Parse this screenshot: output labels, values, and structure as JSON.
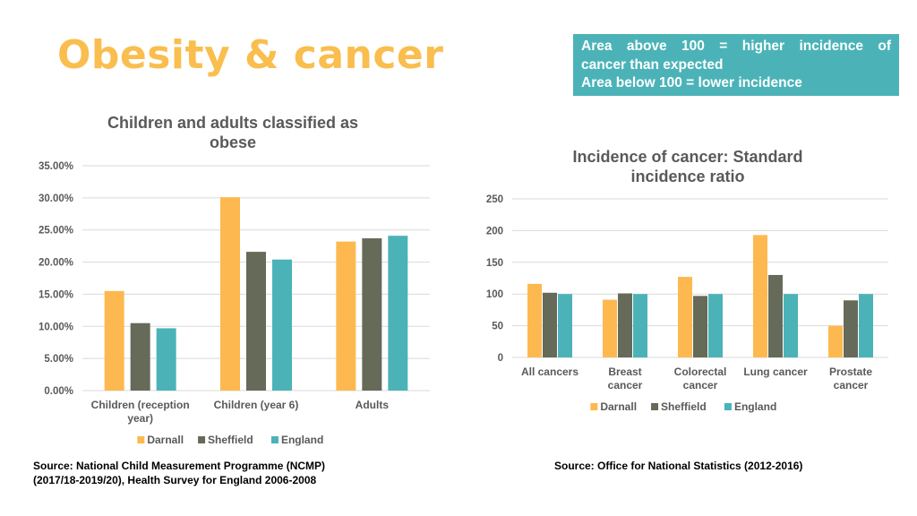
{
  "header": {
    "title": "Obesity & cancer",
    "title_color": "#F9BE4E",
    "note_lines": [
      "Area above 100 = higher incidence of",
      "cancer than expected",
      "Area below 100 = lower incidence"
    ],
    "note_bg": "#4BB3B8"
  },
  "colors": {
    "Darnall": "#FDB94F",
    "Sheffield": "#666A59",
    "England": "#4BB3B8"
  },
  "chart_data": [
    {
      "type": "bar",
      "title_lines": [
        "Children and adults classified as",
        "obese"
      ],
      "categories": [
        [
          "Children (reception",
          "year)"
        ],
        [
          "Children (year 6)"
        ],
        [
          "Adults"
        ]
      ],
      "series": [
        {
          "name": "Darnall",
          "values": [
            15.5,
            30.1,
            23.2
          ]
        },
        {
          "name": "Sheffield",
          "values": [
            10.5,
            21.6,
            23.7
          ]
        },
        {
          "name": "England",
          "values": [
            9.7,
            20.4,
            24.1
          ]
        }
      ],
      "yticks": [
        "0.00%",
        "5.00%",
        "10.00%",
        "15.00%",
        "20.00%",
        "25.00%",
        "30.00%",
        "35.00%"
      ],
      "ylim": [
        0,
        35
      ],
      "ylabel": "",
      "xlabel": "",
      "legend": "bottom"
    },
    {
      "type": "bar",
      "title_lines": [
        "Incidence of cancer: Standard",
        "incidence ratio"
      ],
      "categories": [
        [
          "All cancers"
        ],
        [
          "Breast",
          "cancer"
        ],
        [
          "Colorectal",
          "cancer"
        ],
        [
          "Lung cancer"
        ],
        [
          "Prostate",
          "cancer"
        ]
      ],
      "series": [
        {
          "name": "Darnall",
          "values": [
            116,
            91,
            127,
            193,
            50
          ]
        },
        {
          "name": "Sheffield",
          "values": [
            102,
            101,
            97,
            130,
            90
          ]
        },
        {
          "name": "England",
          "values": [
            100,
            100,
            100,
            100,
            100
          ]
        }
      ],
      "yticks": [
        "0",
        "50",
        "100",
        "150",
        "200",
        "250"
      ],
      "ylim": [
        0,
        250
      ],
      "ylabel": "",
      "xlabel": "",
      "legend": "bottom"
    }
  ],
  "sources": {
    "left": [
      "Source:  National Child Measurement Programme (NCMP)",
      "(2017/18-2019/20), Health Survey for England 2006-2008"
    ],
    "right": [
      "Source:  Office for National Statistics (2012-2016)"
    ]
  }
}
